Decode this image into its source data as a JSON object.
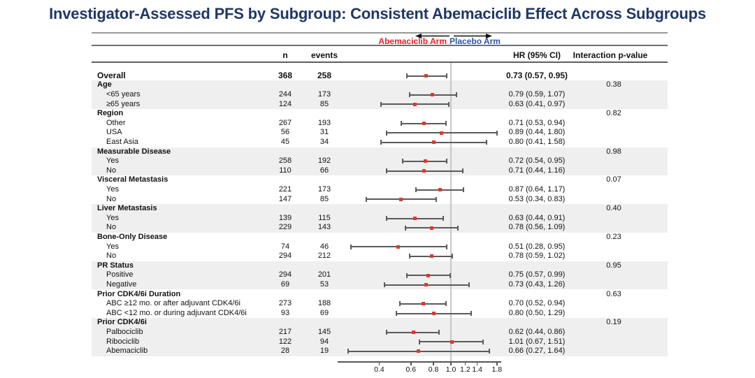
{
  "title": "Investigator-Assessed PFS by Subgroup: Consistent Abemaciclib Effect Across Subgroups",
  "arm_header": {
    "left_label": "Abemaciclib Arm",
    "right_label": "Placebo Arm"
  },
  "columns": {
    "n": "n",
    "events": "events",
    "hr": "HR (95% CI)",
    "p": "Interaction p-value"
  },
  "colors": {
    "title_navy": "#1f3864",
    "abemaciclib_red": "#e8212a",
    "placebo_blue": "#2a55a5",
    "marker_red": "#e0392b",
    "band_gray": "#efefef",
    "bar_gray": "#5a5a5a",
    "refline_gray": "#c6c6c6"
  },
  "chart_data": {
    "type": "forest",
    "x_scale": "log",
    "x_ticks": [
      "0.4",
      "0.6",
      "0.8",
      "1.0",
      "1.2",
      "1.4",
      "1.8"
    ],
    "x_range": [
      0.235,
      1.9
    ],
    "refline": 1.0,
    "overall": {
      "label": "Overall",
      "n": "368",
      "events": "258",
      "hr": 0.73,
      "lo": 0.57,
      "hi": 0.95,
      "hr_text": "0.73 (0.57, 0.95)"
    },
    "groups": [
      {
        "name": "Age",
        "p": "0.38",
        "shaded": true,
        "items": [
          {
            "label": "<65 years",
            "n": "244",
            "events": "173",
            "hr": 0.79,
            "lo": 0.59,
            "hi": 1.07,
            "hr_text": "0.79 (0.59, 1.07)"
          },
          {
            "label": "≥65 years",
            "n": "124",
            "events": "85",
            "hr": 0.63,
            "lo": 0.41,
            "hi": 0.97,
            "hr_text": "0.63 (0.41, 0.97)"
          }
        ]
      },
      {
        "name": "Region",
        "p": "0.82",
        "shaded": false,
        "items": [
          {
            "label": "Other",
            "n": "267",
            "events": "193",
            "hr": 0.71,
            "lo": 0.53,
            "hi": 0.94,
            "hr_text": "0.71 (0.53, 0.94)"
          },
          {
            "label": "USA",
            "n": "56",
            "events": "31",
            "hr": 0.89,
            "lo": 0.44,
            "hi": 1.8,
            "hr_text": "0.89 (0.44, 1.80)"
          },
          {
            "label": "East Asia",
            "n": "45",
            "events": "34",
            "hr": 0.8,
            "lo": 0.41,
            "hi": 1.58,
            "hr_text": "0.80 (0.41, 1.58)"
          }
        ]
      },
      {
        "name": "Measurable Disease",
        "p": "0.98",
        "shaded": true,
        "items": [
          {
            "label": "Yes",
            "n": "258",
            "events": "192",
            "hr": 0.72,
            "lo": 0.54,
            "hi": 0.95,
            "hr_text": "0.72 (0.54, 0.95)"
          },
          {
            "label": "No",
            "n": "110",
            "events": "66",
            "hr": 0.71,
            "lo": 0.44,
            "hi": 1.16,
            "hr_text": "0.71 (0.44, 1.16)"
          }
        ]
      },
      {
        "name": "Visceral Metastasis",
        "p": "0.07",
        "shaded": false,
        "items": [
          {
            "label": "Yes",
            "n": "221",
            "events": "173",
            "hr": 0.87,
            "lo": 0.64,
            "hi": 1.17,
            "hr_text": "0.87 (0.64, 1.17)"
          },
          {
            "label": "No",
            "n": "147",
            "events": "85",
            "hr": 0.53,
            "lo": 0.34,
            "hi": 0.83,
            "hr_text": "0.53 (0.34, 0.83)"
          }
        ]
      },
      {
        "name": "Liver Metastasis",
        "p": "0.40",
        "shaded": true,
        "items": [
          {
            "label": "Yes",
            "n": "139",
            "events": "115",
            "hr": 0.63,
            "lo": 0.44,
            "hi": 0.91,
            "hr_text": "0.63 (0.44, 0.91)"
          },
          {
            "label": "No",
            "n": "229",
            "events": "143",
            "hr": 0.78,
            "lo": 0.56,
            "hi": 1.09,
            "hr_text": "0.78 (0.56, 1.09)"
          }
        ]
      },
      {
        "name": "Bone-Only Disease",
        "p": "0.23",
        "shaded": false,
        "items": [
          {
            "label": "Yes",
            "n": "74",
            "events": "46",
            "hr": 0.51,
            "lo": 0.28,
            "hi": 0.95,
            "hr_text": "0.51 (0.28, 0.95)"
          },
          {
            "label": "No",
            "n": "294",
            "events": "212",
            "hr": 0.78,
            "lo": 0.59,
            "hi": 1.02,
            "hr_text": "0.78 (0.59, 1.02)"
          }
        ]
      },
      {
        "name": "PR Status",
        "p": "0.95",
        "shaded": true,
        "items": [
          {
            "label": "Positive",
            "n": "294",
            "events": "201",
            "hr": 0.75,
            "lo": 0.57,
            "hi": 0.99,
            "hr_text": "0.75 (0.57, 0.99)"
          },
          {
            "label": "Negative",
            "n": "69",
            "events": "53",
            "hr": 0.73,
            "lo": 0.43,
            "hi": 1.26,
            "hr_text": "0.73 (0.43, 1.26)"
          }
        ]
      },
      {
        "name": "Prior CDK4/6i Duration",
        "p": "0.63",
        "shaded": false,
        "items": [
          {
            "label": "ABC ≥12 mo. or after adjuvant CDK4/6i",
            "n": "273",
            "events": "188",
            "hr": 0.7,
            "lo": 0.52,
            "hi": 0.94,
            "hr_text": "0.70 (0.52, 0.94)"
          },
          {
            "label": "ABC <12 mo. or during adjuvant CDK4/6i",
            "n": "93",
            "events": "69",
            "hr": 0.8,
            "lo": 0.5,
            "hi": 1.29,
            "hr_text": "0.80 (0.50, 1.29)"
          }
        ]
      },
      {
        "name": "Prior CDK4/6i",
        "p": "0.19",
        "shaded": true,
        "items": [
          {
            "label": "Palbociclib",
            "n": "217",
            "events": "145",
            "hr": 0.62,
            "lo": 0.44,
            "hi": 0.86,
            "hr_text": "0.62 (0.44, 0.86)"
          },
          {
            "label": "Ribociclib",
            "n": "122",
            "events": "94",
            "hr": 1.01,
            "lo": 0.67,
            "hi": 1.51,
            "hr_text": "1.01 (0.67, 1.51)"
          },
          {
            "label": "Abemaciclib",
            "n": "28",
            "events": "19",
            "hr": 0.66,
            "lo": 0.27,
            "hi": 1.64,
            "hr_text": "0.66 (0.27, 1.64)"
          }
        ]
      }
    ]
  }
}
